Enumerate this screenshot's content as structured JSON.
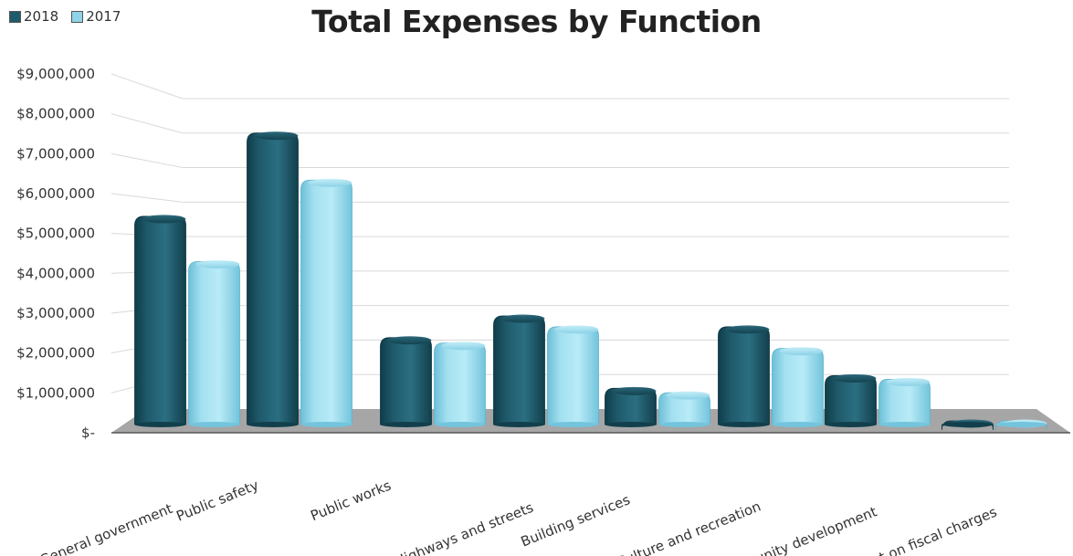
{
  "chart_data": {
    "type": "bar",
    "title": "Total Expenses by Function",
    "categories": [
      "General government",
      "Public safety",
      "Public works",
      "Highways and streets",
      "Building services",
      "Culture and recreation",
      "Community development",
      "Interest on fiscal charges"
    ],
    "series": [
      {
        "name": "2018",
        "values": [
          5750000,
          8050000,
          2400000,
          3000000,
          1000000,
          2700000,
          1350000,
          50000
        ]
      },
      {
        "name": "2017",
        "values": [
          4500000,
          6750000,
          2250000,
          2700000,
          880000,
          2100000,
          1250000,
          40000
        ]
      }
    ],
    "ylim": [
      0,
      9000000
    ],
    "yticks": [
      "$-",
      "$1,000,000",
      "$2,000,000",
      "$3,000,000",
      "$4,000,000",
      "$5,000,000",
      "$6,000,000",
      "$7,000,000",
      "$8,000,000",
      "$9,000,000"
    ],
    "legend_position": "top-left",
    "grid": true,
    "colors": {
      "2018": "#1f5a6b",
      "2017": "#8fd3e8",
      "floor": "#a6a6a6",
      "grid": "#d9d9d9"
    }
  }
}
